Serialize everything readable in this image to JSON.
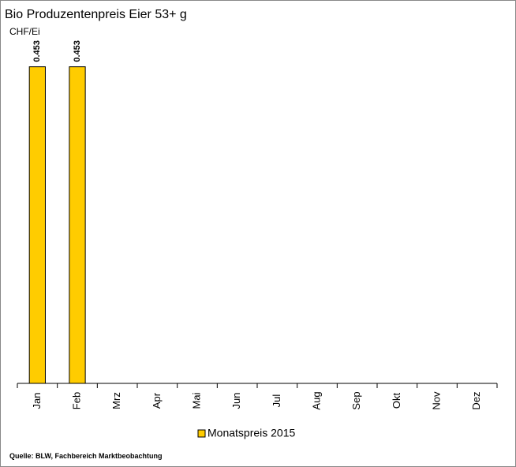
{
  "chart_data": {
    "type": "bar",
    "title": "Bio Produzentenpreis Eier 53+ g",
    "y_label": "CHF/Ei",
    "categories": [
      "Jan",
      "Feb",
      "Mrz",
      "Apr",
      "Mai",
      "Jun",
      "Jul",
      "Aug",
      "Sep",
      "Okt",
      "Nov",
      "Dez"
    ],
    "series": [
      {
        "name": "Monatspreis 2015",
        "color": "#ffcc00",
        "values": [
          0.453,
          0.453,
          null,
          null,
          null,
          null,
          null,
          null,
          null,
          null,
          null,
          null
        ]
      }
    ],
    "ylim": [
      0,
      0.5
    ],
    "source": "Quelle: BLW, Fachbereich Marktbeobachtung"
  }
}
